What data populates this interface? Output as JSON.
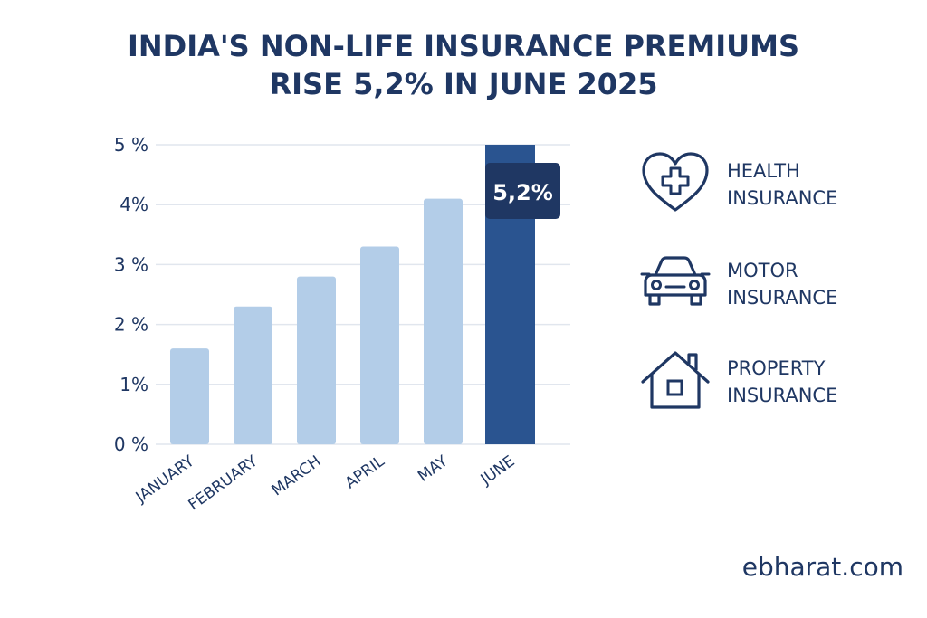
{
  "title": {
    "line1": "INDIA'S NON-LIFE INSURANCE PREMIUMS",
    "line2": "RISE 5,2% IN JUNE 2025"
  },
  "chart_data": {
    "type": "bar",
    "title": "INDIA'S NON-LIFE INSURANCE PREMIUMS RISE 5,2% IN JUNE 2025",
    "categories": [
      "JANUARY",
      "FEBRUARY",
      "MARCH",
      "APRIL",
      "MAY",
      "JUNE"
    ],
    "values": [
      1.6,
      2.3,
      2.8,
      3.3,
      4.1,
      5.2
    ],
    "ylim": [
      0,
      5
    ],
    "yticks": [
      0,
      1,
      2,
      3,
      4,
      5
    ],
    "ytick_labels": [
      "0 %",
      "1%",
      "2 %",
      "3 %",
      "4%",
      "5 %"
    ],
    "xlabel": "",
    "ylabel": "",
    "grid": true,
    "highlight_index": 5,
    "highlight_label": "5,2%",
    "colors": {
      "bar": "#b3cde8",
      "highlight_bar": "#2a5490",
      "highlight_label_bg": "#1f3763",
      "grid": "#e1e6ee",
      "text": "#1f3763"
    }
  },
  "legend": [
    {
      "icon": "heart-plus-icon",
      "line1": "HEALTH",
      "line2": "INSURANCE"
    },
    {
      "icon": "car-icon",
      "line1": "MOTOR",
      "line2": "INSURANCE"
    },
    {
      "icon": "house-icon",
      "line1": "PROPERTY",
      "line2": "INSURANCE"
    }
  ],
  "brand": "ebharat.com"
}
